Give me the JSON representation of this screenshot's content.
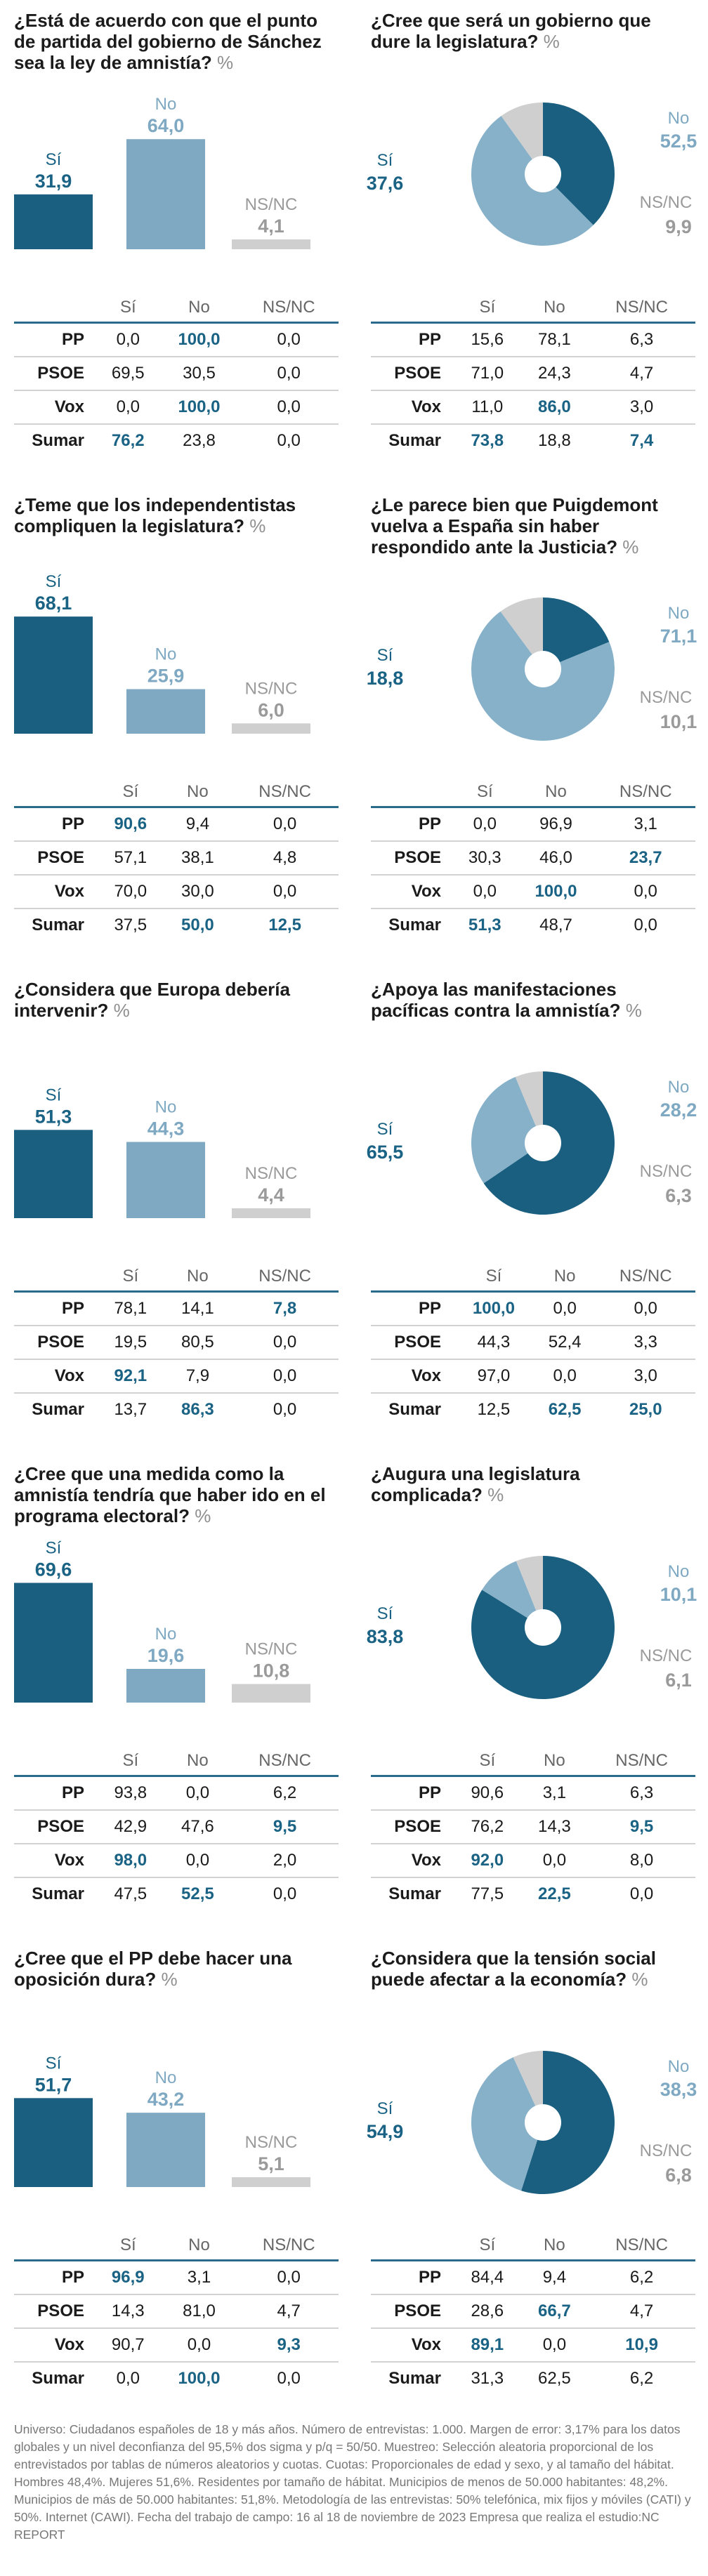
{
  "pct_symbol": "%",
  "table_headers": [
    "Sí",
    "No",
    "NS/NC"
  ],
  "colors": {
    "si": "#1b5f80",
    "no": "#7fa9c2",
    "nsnc": "#cfcfcf",
    "si_text": "#1b6385",
    "no_text": "#7fa9c2",
    "nsnc_text": "#9a9a9a",
    "pie_si": "#1a5f80",
    "pie_no": "#86b1c9"
  },
  "panels": [
    {
      "question": "¿Está de acuerdo con que el punto de partida del gobierno de Sánchez sea la ley de amnistía?",
      "chart": {
        "type": "bar",
        "categories": [
          "Sí",
          "No",
          "NS/NC"
        ],
        "values": [
          "31,9",
          "64,0",
          "4,1"
        ]
      },
      "table": [
        {
          "party": "PP",
          "values": [
            "0,0",
            "100,0",
            "0,0"
          ],
          "hl": [
            1
          ]
        },
        {
          "party": "PSOE",
          "values": [
            "69,5",
            "30,5",
            "0,0"
          ],
          "hl": []
        },
        {
          "party": "Vox",
          "values": [
            "0,0",
            "100,0",
            "0,0"
          ],
          "hl": [
            1
          ]
        },
        {
          "party": "Sumar",
          "values": [
            "76,2",
            "23,8",
            "0,0"
          ],
          "hl": [
            0
          ]
        }
      ]
    },
    {
      "question": "¿Cree que será un gobierno que dure la legislatura?",
      "chart": {
        "type": "pie",
        "categories": [
          "Sí",
          "No",
          "NS/NC"
        ],
        "values": [
          "37,6",
          "52,5",
          "9,9"
        ]
      },
      "table": [
        {
          "party": "PP",
          "values": [
            "15,6",
            "78,1",
            "6,3"
          ],
          "hl": []
        },
        {
          "party": "PSOE",
          "values": [
            "71,0",
            "24,3",
            "4,7"
          ],
          "hl": []
        },
        {
          "party": "Vox",
          "values": [
            "11,0",
            "86,0",
            "3,0"
          ],
          "hl": [
            1
          ]
        },
        {
          "party": "Sumar",
          "values": [
            "73,8",
            "18,8",
            "7,4"
          ],
          "hl": [
            0,
            2
          ]
        }
      ]
    },
    {
      "question": "¿Teme que los independentistas compliquen la legislatura?",
      "chart": {
        "type": "bar",
        "categories": [
          "Sí",
          "No",
          "NS/NC"
        ],
        "values": [
          "68,1",
          "25,9",
          "6,0"
        ]
      },
      "table": [
        {
          "party": "PP",
          "values": [
            "90,6",
            "9,4",
            "0,0"
          ],
          "hl": [
            0
          ]
        },
        {
          "party": "PSOE",
          "values": [
            "57,1",
            "38,1",
            "4,8"
          ],
          "hl": []
        },
        {
          "party": "Vox",
          "values": [
            "70,0",
            "30,0",
            "0,0"
          ],
          "hl": []
        },
        {
          "party": "Sumar",
          "values": [
            "37,5",
            "50,0",
            "12,5"
          ],
          "hl": [
            1,
            2
          ]
        }
      ]
    },
    {
      "question": "¿Le parece bien que Puigdemont vuelva a España sin haber respondido ante la Justicia?",
      "chart": {
        "type": "pie",
        "categories": [
          "Sí",
          "No",
          "NS/NC"
        ],
        "values": [
          "18,8",
          "71,1",
          "10,1"
        ]
      },
      "table": [
        {
          "party": "PP",
          "values": [
            "0,0",
            "96,9",
            "3,1"
          ],
          "hl": []
        },
        {
          "party": "PSOE",
          "values": [
            "30,3",
            "46,0",
            "23,7"
          ],
          "hl": [
            2
          ]
        },
        {
          "party": "Vox",
          "values": [
            "0,0",
            "100,0",
            "0,0"
          ],
          "hl": [
            1
          ]
        },
        {
          "party": "Sumar",
          "values": [
            "51,3",
            "48,7",
            "0,0"
          ],
          "hl": [
            0
          ]
        }
      ]
    },
    {
      "question": "¿Considera que Europa debería intervenir?",
      "chart": {
        "type": "bar",
        "categories": [
          "Sí",
          "No",
          "NS/NC"
        ],
        "values": [
          "51,3",
          "44,3",
          "4,4"
        ]
      },
      "table": [
        {
          "party": "PP",
          "values": [
            "78,1",
            "14,1",
            "7,8"
          ],
          "hl": [
            2
          ]
        },
        {
          "party": "PSOE",
          "values": [
            "19,5",
            "80,5",
            "0,0"
          ],
          "hl": []
        },
        {
          "party": "Vox",
          "values": [
            "92,1",
            "7,9",
            "0,0"
          ],
          "hl": [
            0
          ]
        },
        {
          "party": "Sumar",
          "values": [
            "13,7",
            "86,3",
            "0,0"
          ],
          "hl": [
            1
          ]
        }
      ]
    },
    {
      "question": "¿Apoya las manifestaciones pacíficas contra la amnistía?",
      "chart": {
        "type": "pie",
        "categories": [
          "Sí",
          "No",
          "NS/NC"
        ],
        "values": [
          "65,5",
          "28,2",
          "6,3"
        ]
      },
      "table": [
        {
          "party": "PP",
          "values": [
            "100,0",
            "0,0",
            "0,0"
          ],
          "hl": [
            0
          ]
        },
        {
          "party": "PSOE",
          "values": [
            "44,3",
            "52,4",
            "3,3"
          ],
          "hl": []
        },
        {
          "party": "Vox",
          "values": [
            "97,0",
            "0,0",
            "3,0"
          ],
          "hl": []
        },
        {
          "party": "Sumar",
          "values": [
            "12,5",
            "62,5",
            "25,0"
          ],
          "hl": [
            1,
            2
          ]
        }
      ]
    },
    {
      "question": "¿Cree que una medida como la amnistía tendría que haber ido en el programa electoral?",
      "chart": {
        "type": "bar",
        "categories": [
          "Sí",
          "No",
          "NS/NC"
        ],
        "values": [
          "69,6",
          "19,6",
          "10,8"
        ]
      },
      "table": [
        {
          "party": "PP",
          "values": [
            "93,8",
            "0,0",
            "6,2"
          ],
          "hl": []
        },
        {
          "party": "PSOE",
          "values": [
            "42,9",
            "47,6",
            "9,5"
          ],
          "hl": [
            2
          ]
        },
        {
          "party": "Vox",
          "values": [
            "98,0",
            "0,0",
            "2,0"
          ],
          "hl": [
            0
          ]
        },
        {
          "party": "Sumar",
          "values": [
            "47,5",
            "52,5",
            "0,0"
          ],
          "hl": [
            1
          ]
        }
      ]
    },
    {
      "question": "¿Augura una legislatura complicada?",
      "chart": {
        "type": "pie",
        "categories": [
          "Sí",
          "No",
          "NS/NC"
        ],
        "values": [
          "83,8",
          "10,1",
          "6,1"
        ]
      },
      "table": [
        {
          "party": "PP",
          "values": [
            "90,6",
            "3,1",
            "6,3"
          ],
          "hl": []
        },
        {
          "party": "PSOE",
          "values": [
            "76,2",
            "14,3",
            "9,5"
          ],
          "hl": [
            2
          ]
        },
        {
          "party": "Vox",
          "values": [
            "92,0",
            "0,0",
            "8,0"
          ],
          "hl": [
            0
          ]
        },
        {
          "party": "Sumar",
          "values": [
            "77,5",
            "22,5",
            "0,0"
          ],
          "hl": [
            1
          ]
        }
      ]
    },
    {
      "question": "¿Cree que el PP debe hacer una oposición dura?",
      "chart": {
        "type": "bar",
        "categories": [
          "Sí",
          "No",
          "NS/NC"
        ],
        "values": [
          "51,7",
          "43,2",
          "5,1"
        ]
      },
      "table": [
        {
          "party": "PP",
          "values": [
            "96,9",
            "3,1",
            "0,0"
          ],
          "hl": [
            0
          ]
        },
        {
          "party": "PSOE",
          "values": [
            "14,3",
            "81,0",
            "4,7"
          ],
          "hl": []
        },
        {
          "party": "Vox",
          "values": [
            "90,7",
            "0,0",
            "9,3"
          ],
          "hl": [
            2
          ]
        },
        {
          "party": "Sumar",
          "values": [
            "0,0",
            "100,0",
            "0,0"
          ],
          "hl": [
            1
          ]
        }
      ]
    },
    {
      "question": "¿Considera que la tensión social puede afectar a la economía?",
      "chart": {
        "type": "pie",
        "categories": [
          "Sí",
          "No",
          "NS/NC"
        ],
        "values": [
          "54,9",
          "38,3",
          "6,8"
        ]
      },
      "table": [
        {
          "party": "PP",
          "values": [
            "84,4",
            "9,4",
            "6,2"
          ],
          "hl": []
        },
        {
          "party": "PSOE",
          "values": [
            "28,6",
            "66,7",
            "4,7"
          ],
          "hl": [
            1
          ]
        },
        {
          "party": "Vox",
          "values": [
            "89,1",
            "0,0",
            "10,9"
          ],
          "hl": [
            0,
            2
          ]
        },
        {
          "party": "Sumar",
          "values": [
            "31,3",
            "62,5",
            "6,2"
          ],
          "hl": []
        }
      ]
    }
  ],
  "footer": "Universo: Ciudadanos españoles de 18 y más años. Número de entrevistas: 1.000. Margen de error: 3,17% para los datos globales y un nivel deconfianza del 95,5% dos sigma y p/q = 50/50. Muestreo: Selección aleatoria proporcional de los entrevistados por tablas de números aleatorios y cuotas. Cuotas: Proporcionales de edad y sexo, y al tamaño del hábitat. Hombres 48,4%. Mujeres 51,6%. Residentes por tamaño de hábitat. Municipios de menos de 50.000 habitantes: 48,2%. Municipios de más de 50.000 habitantes: 51,8%. Metodología de las entrevistas: 50% telefónica, mix fijos y móviles (CATI) y 50%. Internet (CAWI). Fecha del trabajo de campo: 16 al 18 de noviembre de 2023 Empresa que realiza el estudio:NC REPORT",
  "chart_data": [
    {
      "type": "bar",
      "categories": [
        "Sí",
        "No",
        "NS/NC"
      ],
      "values": [
        31.9,
        64.0,
        4.1
      ]
    },
    {
      "type": "pie",
      "categories": [
        "Sí",
        "No",
        "NS/NC"
      ],
      "values": [
        37.6,
        52.5,
        9.9
      ]
    },
    {
      "type": "bar",
      "categories": [
        "Sí",
        "No",
        "NS/NC"
      ],
      "values": [
        68.1,
        25.9,
        6.0
      ]
    },
    {
      "type": "pie",
      "categories": [
        "Sí",
        "No",
        "NS/NC"
      ],
      "values": [
        18.8,
        71.1,
        10.1
      ]
    },
    {
      "type": "bar",
      "categories": [
        "Sí",
        "No",
        "NS/NC"
      ],
      "values": [
        51.3,
        44.3,
        4.4
      ]
    },
    {
      "type": "pie",
      "categories": [
        "Sí",
        "No",
        "NS/NC"
      ],
      "values": [
        65.5,
        28.2,
        6.3
      ]
    },
    {
      "type": "bar",
      "categories": [
        "Sí",
        "No",
        "NS/NC"
      ],
      "values": [
        69.6,
        19.6,
        10.8
      ]
    },
    {
      "type": "pie",
      "categories": [
        "Sí",
        "No",
        "NS/NC"
      ],
      "values": [
        83.8,
        10.1,
        6.1
      ]
    },
    {
      "type": "bar",
      "categories": [
        "Sí",
        "No",
        "NS/NC"
      ],
      "values": [
        51.7,
        43.2,
        5.1
      ]
    },
    {
      "type": "pie",
      "categories": [
        "Sí",
        "No",
        "NS/NC"
      ],
      "values": [
        54.9,
        38.3,
        6.8
      ]
    }
  ]
}
